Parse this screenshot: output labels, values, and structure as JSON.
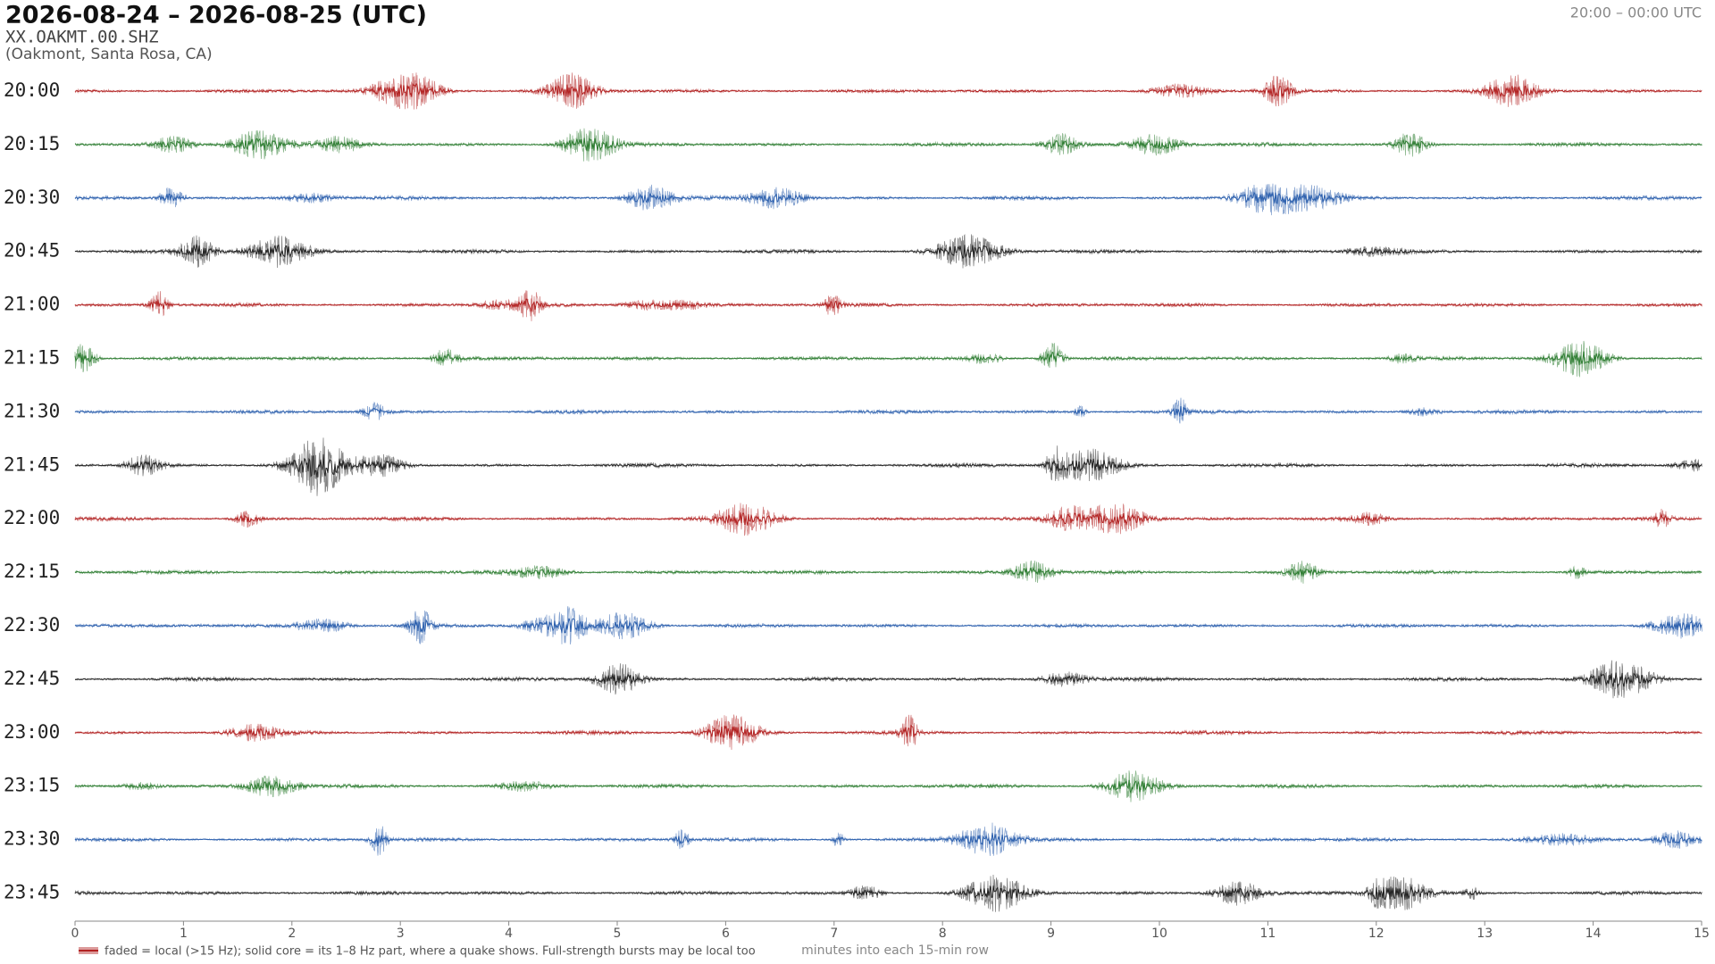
{
  "chart_data": {
    "type": "helicorder",
    "title": "2026-08-24 – 2026-08-25  (UTC)",
    "subtitle": "XX.OAKMT.00.SHZ",
    "location": "(Oakmont, Santa Rosa, CA)",
    "time_range": "20:00 – 00:00 UTC",
    "categories": [
      "20:00",
      "20:15",
      "20:30",
      "20:45",
      "21:00",
      "21:15",
      "21:30",
      "21:45",
      "22:00",
      "22:15",
      "22:30",
      "22:45",
      "23:00",
      "23:15",
      "23:30",
      "23:45"
    ],
    "colors": [
      "#b22222",
      "#2e7d32",
      "#2b5fad",
      "#222222"
    ],
    "xlim": [
      0,
      15
    ],
    "xticks": [
      0,
      1,
      2,
      3,
      4,
      5,
      6,
      7,
      8,
      9,
      10,
      11,
      12,
      13,
      14,
      15
    ],
    "xlabel": "minutes into each 15-min row",
    "legend": "faded = local (>15 Hz); solid core = its 1–8 Hz part, where a quake shows. Full-strength bursts may be local too"
  }
}
